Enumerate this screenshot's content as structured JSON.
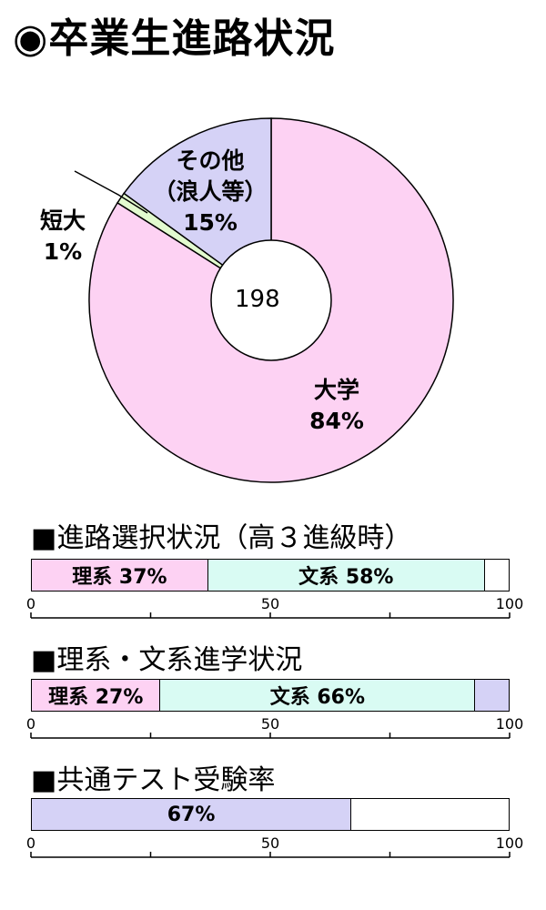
{
  "title": "◉卒業生進路状況",
  "colors": {
    "pink": "#fdd2f3",
    "mint": "#d9fbf3",
    "lavender": "#d5d2f6",
    "lightgreen": "#e2fbcf",
    "outline": "#000000"
  },
  "chart_data": [
    {
      "type": "pie",
      "title": "",
      "center_label": "198",
      "slices": [
        {
          "name": "大学",
          "value": 84,
          "value_label": "84%",
          "color": "#fdd2f3"
        },
        {
          "name": "短大",
          "value": 1,
          "value_label": "1%",
          "color": "#e2fbcf"
        },
        {
          "name": "その他（浪人等）",
          "label_lines": [
            "その他",
            "（浪人等）"
          ],
          "value": 15,
          "value_label": "15%",
          "color": "#d5d2f6"
        }
      ]
    },
    {
      "type": "bar",
      "title": "■進路選択状況（高３進級時）",
      "xlim": [
        0,
        100
      ],
      "ticks": [
        "0",
        "50",
        "100"
      ],
      "segments": [
        {
          "name": "理系",
          "value": 37,
          "label": "理系 37%",
          "color": "#fdd2f3"
        },
        {
          "name": "文系",
          "value": 58,
          "label": "文系 58%",
          "color": "#d9fbf3"
        }
      ]
    },
    {
      "type": "bar",
      "title": "■理系・文系進学状況",
      "xlim": [
        0,
        100
      ],
      "ticks": [
        "0",
        "50",
        "100"
      ],
      "segments": [
        {
          "name": "理系",
          "value": 27,
          "label": "理系 27%",
          "color": "#fdd2f3"
        },
        {
          "name": "文系",
          "value": 66,
          "label": "文系 66%",
          "color": "#d9fbf3"
        },
        {
          "name": "",
          "value": 7,
          "label": "",
          "color": "#d5d2f6"
        }
      ]
    },
    {
      "type": "bar",
      "title": "■共通テスト受験率",
      "xlim": [
        0,
        100
      ],
      "ticks": [
        "0",
        "50",
        "100"
      ],
      "segments": [
        {
          "name": "",
          "value": 67,
          "label": "67%",
          "color": "#d5d2f6"
        }
      ]
    }
  ]
}
